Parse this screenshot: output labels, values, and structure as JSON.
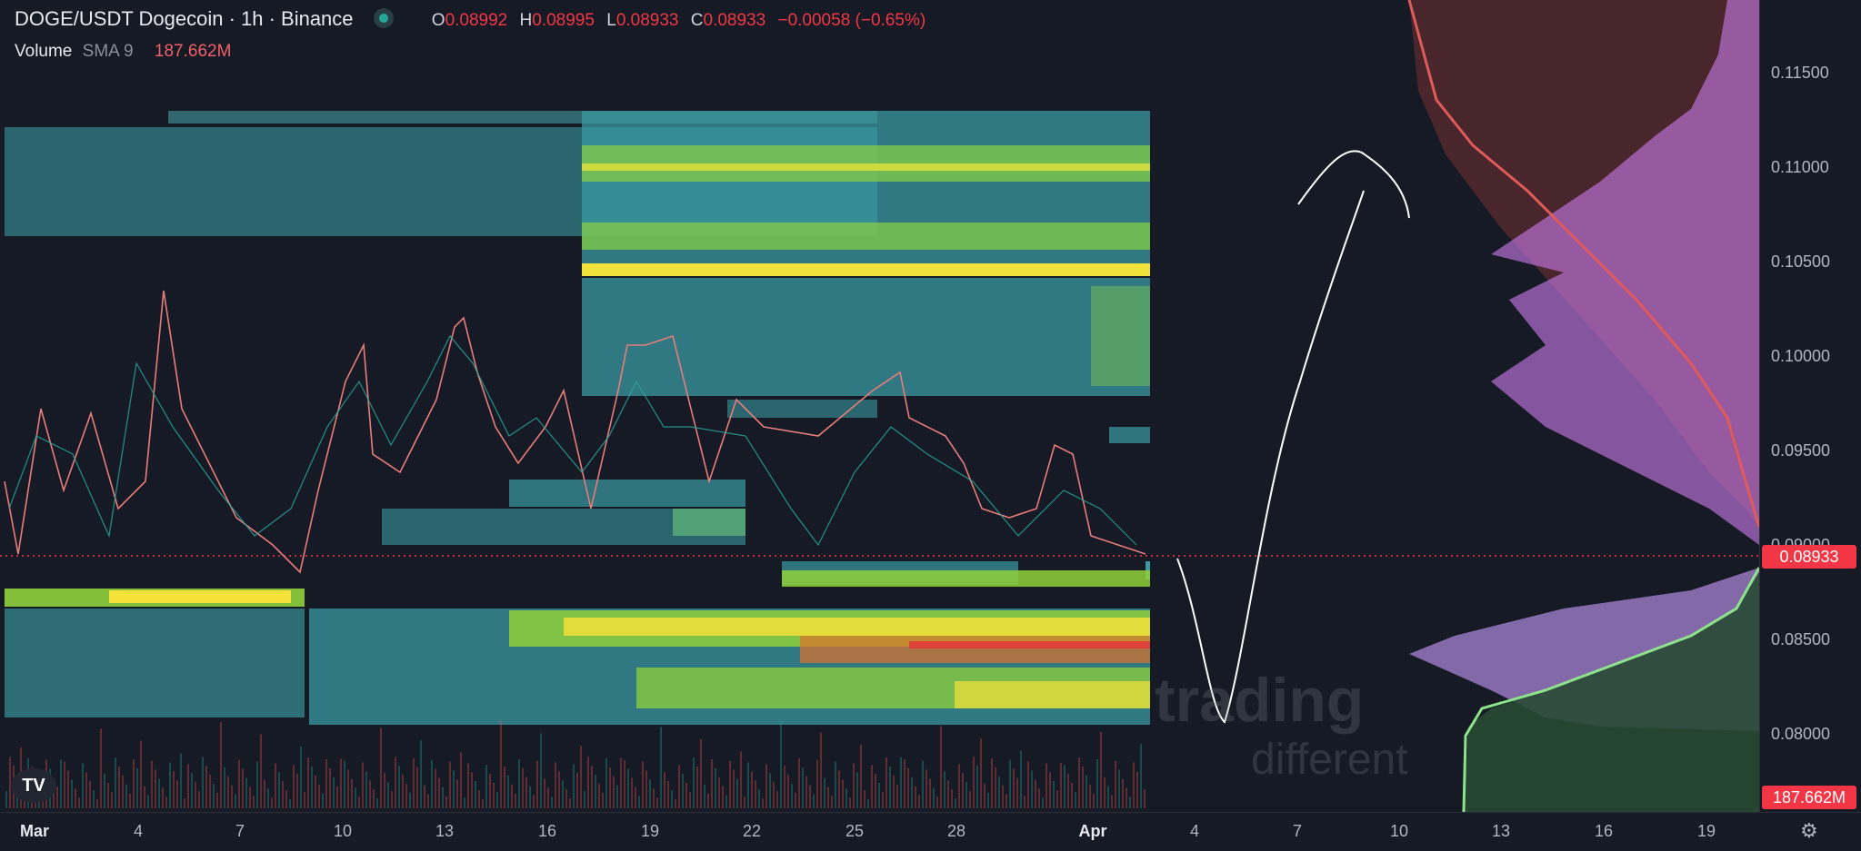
{
  "header": {
    "title": "DOGE/USDT Dogecoin · 1h · Binance",
    "ohlc": [
      {
        "key": "O",
        "value": "0.08992"
      },
      {
        "key": "H",
        "value": "0.08995"
      },
      {
        "key": "L",
        "value": "0.08933"
      },
      {
        "key": "C",
        "value": "0.08933"
      }
    ],
    "change": "−0.00058 (−0.65%)"
  },
  "volume": {
    "label": "Volume",
    "sma": "SMA 9",
    "value": "187.662M"
  },
  "price_axis": {
    "ticks": [
      "0.11500",
      "0.11000",
      "0.10500",
      "0.10000",
      "0.09500",
      "0.09000",
      "0.08500",
      "0.08000"
    ],
    "current_price": "0.08933",
    "volume_badge": "187.662M"
  },
  "time_axis": {
    "ticks": [
      "Mar",
      "4",
      "7",
      "10",
      "13",
      "16",
      "19",
      "22",
      "25",
      "28",
      "Apr",
      "4",
      "7",
      "10",
      "13",
      "16",
      "19"
    ]
  },
  "watermark": {
    "line1": "trading",
    "line2": "different"
  },
  "logo": "TV",
  "colors": {
    "up": "#26a69a",
    "down": "#ef5350",
    "heatmap_low": "#3b9aa1",
    "heatmap_mid": "#8fd13b",
    "heatmap_high": "#f5e13a",
    "accent_red": "#f23645"
  },
  "icons": [
    "tradingview-logo-icon",
    "settings-gear-icon",
    "symbol-status-icon"
  ]
}
